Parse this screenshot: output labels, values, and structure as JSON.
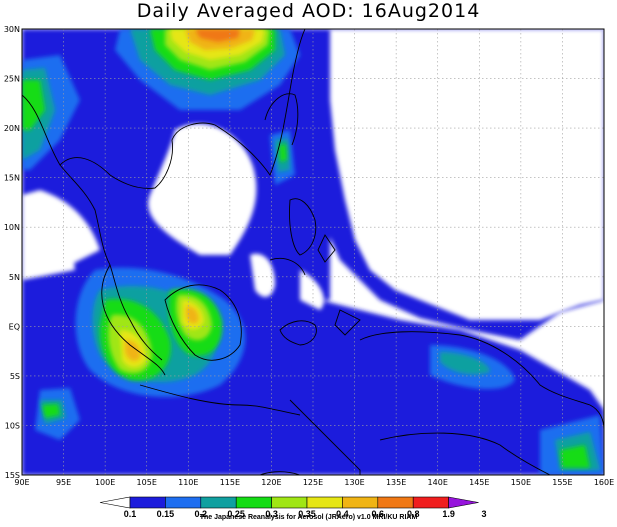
{
  "title": "Daily Averaged AOD: 16Aug2014",
  "lat_labels": [
    "30N",
    "25N",
    "20N",
    "15N",
    "10N",
    "5N",
    "EQ",
    "5S",
    "10S",
    "15S"
  ],
  "lon_labels": [
    "90E",
    "95E",
    "100E",
    "105E",
    "110E",
    "115E",
    "120E",
    "125E",
    "130E",
    "135E",
    "140E",
    "145E",
    "150E",
    "155E",
    "160E"
  ],
  "colorbar": {
    "levels": [
      "0.1",
      "0.15",
      "0.2",
      "0.25",
      "0.3",
      "0.35",
      "0.4",
      "0.6",
      "0.8",
      "1.9",
      "3"
    ],
    "colors": [
      "#ffffff",
      "#1c1cdc",
      "#1e6ef0",
      "#10a0a0",
      "#14dc14",
      "#a0e614",
      "#e6e614",
      "#f0b414",
      "#f07814",
      "#f01e1e",
      "#9614dc"
    ]
  },
  "credit": "The Japanese Reanalysis for Aerosol (JRAero) v1.0 MRI/KU RIAM",
  "map": {
    "extent": {
      "lon": [
        90,
        160
      ],
      "lat": [
        -15,
        30
      ]
    },
    "field": "aerosol optical depth",
    "colors": {
      "ocean_land_background": "#ffffff",
      "coast": "#000000",
      "grid": "#a0a0a0"
    }
  }
}
